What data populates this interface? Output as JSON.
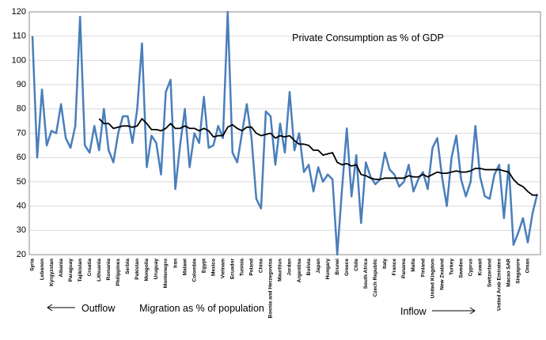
{
  "chart_data": {
    "type": "line",
    "title": "Private Consumption as % of GDP",
    "annotations": [
      "Outflow",
      "Migration as % of population",
      "Inflow"
    ],
    "categories": [
      "Syria",
      null,
      "Lebanon",
      null,
      "Kyrgyzstan",
      null,
      "Albania",
      null,
      "Paraguay",
      null,
      "Tajikistan",
      null,
      "Croatia",
      null,
      "Lithuania",
      null,
      "Romania",
      null,
      "Philippines",
      null,
      "Serbia",
      null,
      "Pakistan",
      null,
      "Mongolia",
      null,
      "Uruguay",
      null,
      "Montenegro",
      null,
      "Iran",
      null,
      "Malawi",
      null,
      "Colombia",
      null,
      "Egypt",
      null,
      "Mexico",
      null,
      "Vietnam",
      null,
      "Ecuador",
      null,
      "Tunisia",
      null,
      "Poland",
      null,
      "China",
      null,
      "Bosnia and Herzegovina",
      null,
      "Mauritius",
      null,
      "Jordan",
      null,
      "Argentina",
      null,
      "Bolivia",
      null,
      "Japan",
      null,
      "Hungary",
      null,
      "Brunei",
      null,
      "Greece",
      null,
      "Chile",
      null,
      "South Africa",
      null,
      "Czech Republic",
      null,
      "Italy",
      null,
      "France",
      null,
      "Panama",
      null,
      "Malta",
      null,
      "Finland",
      null,
      "United Kingdom",
      null,
      "New Zealand",
      null,
      "Turkey",
      null,
      "Sweden",
      null,
      "Cyprus",
      null,
      "Kuwait",
      null,
      "Switzerland",
      null,
      "United Arab Emirates",
      null,
      "Macao SAR",
      null,
      "Singapore",
      null,
      "Oman",
      null,
      null
    ],
    "series": [
      {
        "color": "#4a7ebb",
        "values": [
          110,
          60,
          88,
          65,
          71,
          70,
          82,
          68,
          64,
          73,
          118,
          65,
          62,
          73,
          63,
          80,
          63,
          58,
          70,
          77,
          77,
          66,
          80,
          107,
          56,
          69,
          66,
          53,
          87,
          92,
          47,
          65,
          80,
          56,
          70,
          66,
          85,
          64,
          65,
          73,
          68,
          120,
          62,
          58,
          70,
          82,
          68,
          43,
          39,
          79,
          77,
          57,
          74,
          62,
          87,
          63,
          70,
          54,
          57,
          46,
          56,
          50,
          53,
          51,
          20,
          47,
          72,
          44,
          61,
          33,
          58,
          52,
          49,
          51,
          62,
          55,
          53,
          48,
          50,
          57,
          46,
          51,
          54,
          47,
          64,
          68,
          52,
          40,
          60,
          69,
          51,
          44,
          50,
          73,
          52,
          44,
          43,
          53,
          57,
          35,
          57,
          24,
          29,
          35,
          25,
          37,
          45
        ]
      },
      {
        "color": "#000000",
        "values": [
          null,
          null,
          null,
          null,
          null,
          null,
          null,
          null,
          null,
          null,
          null,
          null,
          null,
          null,
          76,
          74,
          74,
          72,
          72.5,
          73,
          73,
          72.5,
          73,
          76,
          74,
          71.5,
          71.5,
          71,
          72,
          74,
          72,
          72,
          73,
          72,
          72,
          71,
          72,
          71,
          68.5,
          69,
          69,
          72.5,
          73.5,
          72,
          71,
          72.5,
          72.5,
          70,
          69,
          69.5,
          70,
          68,
          69,
          68.5,
          69,
          67,
          65.5,
          65.5,
          65,
          63,
          63,
          61,
          61.5,
          62,
          58,
          57,
          57.5,
          56.5,
          57,
          53,
          52.5,
          51.5,
          51,
          51,
          51.5,
          51.5,
          51.5,
          51.5,
          51.5,
          52.5,
          52,
          52,
          53,
          52,
          53,
          54,
          53.5,
          53.5,
          54,
          54.5,
          54,
          54,
          54.5,
          55.5,
          55.5,
          55,
          55,
          55,
          55,
          54.5,
          54,
          51,
          49,
          48,
          46,
          44.5,
          44.5
        ]
      }
    ],
    "ylim": [
      20,
      120
    ],
    "yticks": [
      20,
      30,
      40,
      50,
      60,
      70,
      80,
      90,
      100,
      110,
      120
    ],
    "grid": true
  }
}
